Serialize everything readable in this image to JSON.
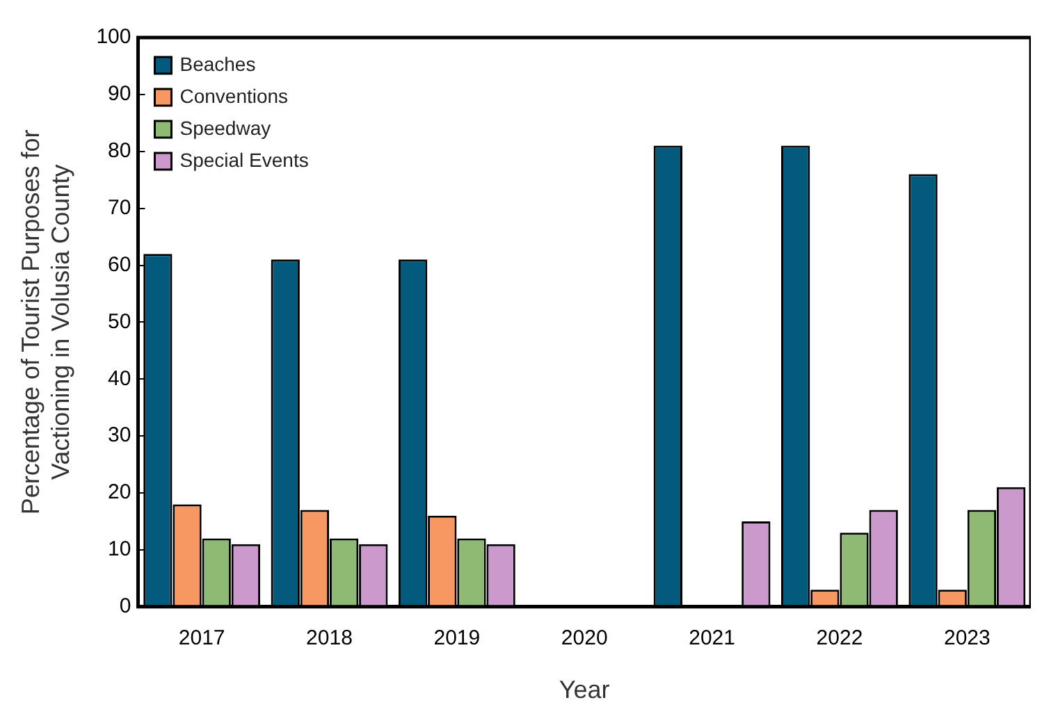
{
  "chart_data": {
    "type": "bar",
    "xlabel": "Year",
    "ylabel": "Percentage of Tourist Purposes for\nVactioning in Volusia County",
    "categories": [
      "2017",
      "2018",
      "2019",
      "2020",
      "2021",
      "2022",
      "2023"
    ],
    "series": [
      {
        "name": "Beaches",
        "color": "#045a7c",
        "values": [
          62,
          61,
          61,
          null,
          81,
          81,
          76
        ]
      },
      {
        "name": "Conventions",
        "color": "#f79862",
        "values": [
          18,
          17,
          16,
          null,
          null,
          3,
          3
        ]
      },
      {
        "name": "Speedway",
        "color": "#8fba74",
        "values": [
          12,
          12,
          12,
          null,
          null,
          13,
          17
        ]
      },
      {
        "name": "Special Events",
        "color": "#cc99cc",
        "values": [
          11,
          11,
          11,
          null,
          15,
          17,
          21
        ]
      }
    ],
    "ylim": [
      0,
      100
    ],
    "yticks": [
      0,
      10,
      20,
      30,
      40,
      50,
      60,
      70,
      80,
      90,
      100
    ],
    "grid": false,
    "legend": "top left"
  }
}
